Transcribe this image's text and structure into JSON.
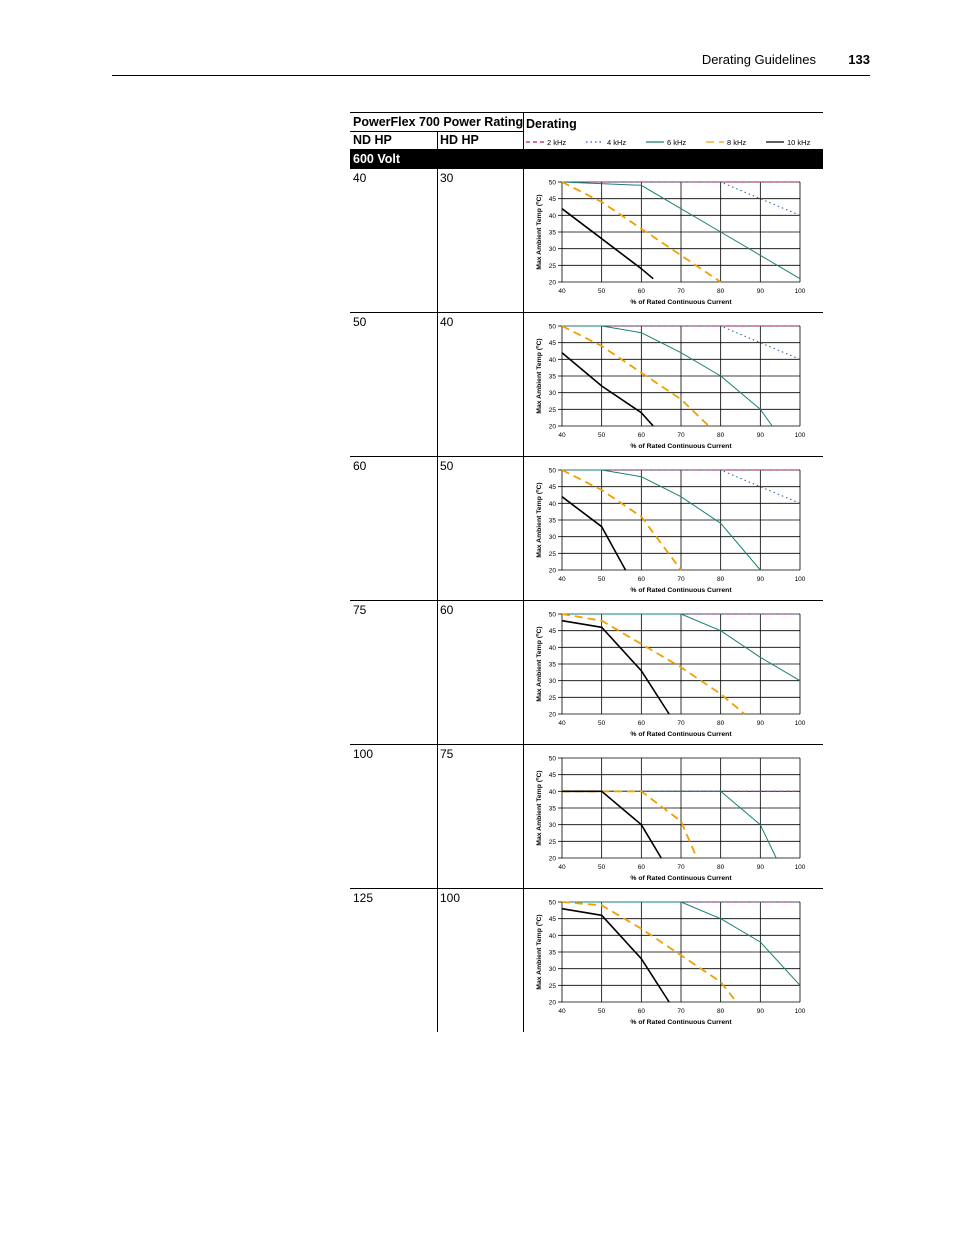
{
  "header": {
    "section_title": "Derating Guidelines",
    "page_number": "133"
  },
  "table": {
    "group_header": "PowerFlex 700 Power Rating",
    "col_nd": "ND HP",
    "col_hd": "HD HP",
    "col_derating": "Derating",
    "section_label": "600 Volt"
  },
  "legend": [
    {
      "label": "2 kHz",
      "color": "#c2185b",
      "dash": "4,3"
    },
    {
      "label": "4 kHz",
      "color": "#2b5aa8",
      "dash": "1.5,3"
    },
    {
      "label": "6 kHz",
      "color": "#1a7f74",
      "dash": ""
    },
    {
      "label": "8 kHz",
      "color": "#f0a000",
      "dash": "8,5"
    },
    {
      "label": "10 kHz",
      "color": "#000000",
      "dash": ""
    }
  ],
  "axis": {
    "xlabel": "% of Rated Continuous Current",
    "ylabel": "Max Ambient Temp (ºC)",
    "xlim": [
      40,
      100
    ],
    "ylim": [
      20,
      50
    ],
    "xticks": [
      40,
      50,
      60,
      70,
      80,
      90,
      100
    ],
    "yticks": [
      20,
      25,
      30,
      35,
      40,
      45,
      50
    ],
    "grid": true
  },
  "rows": [
    {
      "nd": "40",
      "hd": "30"
    },
    {
      "nd": "50",
      "hd": "40"
    },
    {
      "nd": "60",
      "hd": "50"
    },
    {
      "nd": "75",
      "hd": "60"
    },
    {
      "nd": "100",
      "hd": "75"
    },
    {
      "nd": "125",
      "hd": "100"
    }
  ],
  "chart_data": [
    {
      "type": "line",
      "series": [
        {
          "name": "2 kHz",
          "x": [
            40,
            100
          ],
          "y": [
            50,
            50
          ]
        },
        {
          "name": "4 kHz",
          "x": [
            40,
            80,
            90,
            100
          ],
          "y": [
            50,
            50,
            45,
            40
          ]
        },
        {
          "name": "6 kHz",
          "x": [
            40,
            60,
            70,
            80,
            90,
            100
          ],
          "y": [
            50,
            49,
            42,
            35,
            28,
            21
          ]
        },
        {
          "name": "8 kHz",
          "x": [
            40,
            50,
            60,
            70,
            80
          ],
          "y": [
            50,
            44,
            36,
            28,
            20
          ]
        },
        {
          "name": "10 kHz",
          "x": [
            40,
            50,
            60,
            63
          ],
          "y": [
            42,
            33,
            24,
            21
          ]
        }
      ]
    },
    {
      "type": "line",
      "series": [
        {
          "name": "2 kHz",
          "x": [
            40,
            100
          ],
          "y": [
            50,
            50
          ]
        },
        {
          "name": "4 kHz",
          "x": [
            40,
            80,
            90,
            100
          ],
          "y": [
            50,
            50,
            45,
            40
          ]
        },
        {
          "name": "6 kHz",
          "x": [
            40,
            50,
            60,
            70,
            80,
            90,
            93
          ],
          "y": [
            50,
            50,
            48,
            42,
            35,
            25,
            20
          ]
        },
        {
          "name": "8 kHz",
          "x": [
            40,
            50,
            60,
            70,
            77
          ],
          "y": [
            50,
            44,
            36,
            28,
            20
          ]
        },
        {
          "name": "10 kHz",
          "x": [
            40,
            50,
            60,
            63
          ],
          "y": [
            42,
            32,
            24,
            20
          ]
        }
      ]
    },
    {
      "type": "line",
      "series": [
        {
          "name": "2 kHz",
          "x": [
            40,
            100
          ],
          "y": [
            50,
            50
          ]
        },
        {
          "name": "4 kHz",
          "x": [
            40,
            80,
            90,
            100
          ],
          "y": [
            50,
            50,
            45,
            40
          ]
        },
        {
          "name": "6 kHz",
          "x": [
            40,
            50,
            60,
            70,
            80,
            90
          ],
          "y": [
            50,
            50,
            48,
            42,
            34,
            20
          ]
        },
        {
          "name": "8 kHz",
          "x": [
            40,
            50,
            60,
            70
          ],
          "y": [
            50,
            44,
            36,
            20
          ]
        },
        {
          "name": "10 kHz",
          "x": [
            40,
            50,
            56
          ],
          "y": [
            42,
            33,
            20
          ]
        }
      ]
    },
    {
      "type": "line",
      "series": [
        {
          "name": "2 kHz",
          "x": [
            40,
            100
          ],
          "y": [
            50,
            50
          ]
        },
        {
          "name": "4 kHz",
          "x": [
            40,
            100
          ],
          "y": [
            50,
            50
          ]
        },
        {
          "name": "6 kHz",
          "x": [
            40,
            70,
            80,
            90,
            100
          ],
          "y": [
            50,
            50,
            45,
            37,
            30
          ]
        },
        {
          "name": "8 kHz",
          "x": [
            40,
            50,
            60,
            70,
            80,
            86
          ],
          "y": [
            50,
            48,
            41,
            34,
            26,
            20
          ]
        },
        {
          "name": "10 kHz",
          "x": [
            40,
            50,
            60,
            67
          ],
          "y": [
            48,
            46,
            33,
            20
          ]
        }
      ]
    },
    {
      "type": "line",
      "series": [
        {
          "name": "2 kHz",
          "x": [
            40,
            100
          ],
          "y": [
            40,
            40
          ]
        },
        {
          "name": "4 kHz",
          "x": [
            40,
            100
          ],
          "y": [
            40,
            40
          ]
        },
        {
          "name": "6 kHz",
          "x": [
            40,
            80,
            90,
            94
          ],
          "y": [
            40,
            40,
            30,
            20
          ]
        },
        {
          "name": "8 kHz",
          "x": [
            40,
            60,
            70,
            74
          ],
          "y": [
            40,
            40,
            31,
            20
          ]
        },
        {
          "name": "10 kHz",
          "x": [
            40,
            50,
            60,
            65
          ],
          "y": [
            40,
            40,
            30,
            20
          ]
        }
      ]
    },
    {
      "type": "line",
      "series": [
        {
          "name": "2 kHz",
          "x": [
            40,
            100
          ],
          "y": [
            50,
            50
          ]
        },
        {
          "name": "4 kHz",
          "x": [
            40,
            100
          ],
          "y": [
            50,
            50
          ]
        },
        {
          "name": "6 kHz",
          "x": [
            40,
            70,
            80,
            90,
            100
          ],
          "y": [
            50,
            50,
            45,
            38,
            25
          ]
        },
        {
          "name": "8 kHz",
          "x": [
            40,
            50,
            60,
            70,
            80,
            84
          ],
          "y": [
            50,
            49,
            42,
            34,
            26,
            20
          ]
        },
        {
          "name": "10 kHz",
          "x": [
            40,
            50,
            60,
            67
          ],
          "y": [
            48,
            46,
            33,
            20
          ]
        }
      ]
    }
  ]
}
